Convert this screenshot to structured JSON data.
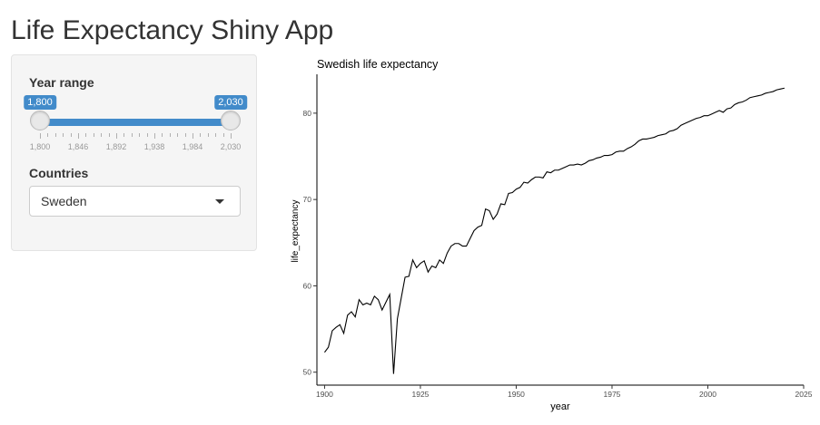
{
  "app": {
    "title": "Life Expectancy Shiny App"
  },
  "sidebar": {
    "year_range": {
      "label": "Year range",
      "min": 1800,
      "max": 2030,
      "low": 1800,
      "high": 2030,
      "low_label": "1,800",
      "high_label": "2,030",
      "major_ticks": [
        "1,800",
        "1,846",
        "1,892",
        "1,938",
        "1,984",
        "2,030"
      ],
      "minor_ticks_per_step": 4,
      "accent_color": "#428bca"
    },
    "countries": {
      "label": "Countries",
      "selected": "Sweden",
      "icon": "caret-down-icon"
    }
  },
  "chart_data": {
    "type": "line",
    "title": "Swedish life expectancy",
    "xlabel": "year",
    "ylabel": "life_expectancy",
    "xlim": [
      1898,
      2025
    ],
    "ylim": [
      48.5,
      84.5
    ],
    "xticks": [
      1900,
      1925,
      1950,
      1975,
      2000,
      2025
    ],
    "yticks": [
      50,
      60,
      70,
      80
    ],
    "grid": false,
    "series": [
      {
        "color": "#000000",
        "x": [
          1900,
          1901,
          1902,
          1903,
          1904,
          1905,
          1906,
          1907,
          1908,
          1909,
          1910,
          1911,
          1912,
          1913,
          1914,
          1915,
          1916,
          1917,
          1918,
          1919,
          1920,
          1921,
          1922,
          1923,
          1924,
          1925,
          1926,
          1927,
          1928,
          1929,
          1930,
          1931,
          1932,
          1933,
          1934,
          1935,
          1936,
          1937,
          1938,
          1939,
          1940,
          1941,
          1942,
          1943,
          1944,
          1945,
          1946,
          1947,
          1948,
          1949,
          1950,
          1951,
          1952,
          1953,
          1954,
          1955,
          1956,
          1957,
          1958,
          1959,
          1960,
          1961,
          1962,
          1963,
          1964,
          1965,
          1966,
          1967,
          1968,
          1969,
          1970,
          1971,
          1972,
          1973,
          1974,
          1975,
          1976,
          1977,
          1978,
          1979,
          1980,
          1981,
          1982,
          1983,
          1984,
          1985,
          1986,
          1987,
          1988,
          1989,
          1990,
          1991,
          1992,
          1993,
          1994,
          1995,
          1996,
          1997,
          1998,
          1999,
          2000,
          2001,
          2002,
          2003,
          2004,
          2005,
          2006,
          2007,
          2008,
          2009,
          2010,
          2011,
          2012,
          2013,
          2014,
          2015,
          2016,
          2017,
          2018,
          2019,
          2020
        ],
        "y": [
          52.3,
          52.9,
          54.8,
          55.2,
          55.5,
          54.5,
          56.6,
          57.0,
          56.4,
          58.4,
          57.8,
          58.0,
          57.8,
          58.8,
          58.4,
          57.2,
          58.1,
          59.0,
          49.8,
          56.2,
          58.6,
          61.0,
          61.1,
          63.0,
          62.1,
          62.6,
          62.9,
          61.6,
          62.3,
          62.1,
          63.0,
          62.6,
          63.8,
          64.6,
          64.9,
          64.9,
          64.6,
          64.6,
          65.5,
          66.4,
          66.8,
          67.0,
          68.9,
          68.7,
          67.7,
          68.3,
          69.5,
          69.4,
          70.7,
          70.8,
          71.2,
          71.4,
          72.0,
          71.9,
          72.3,
          72.6,
          72.6,
          72.5,
          73.2,
          73.1,
          73.4,
          73.4,
          73.6,
          73.8,
          74.0,
          74.0,
          74.1,
          74.0,
          74.2,
          74.5,
          74.6,
          74.8,
          74.9,
          75.1,
          75.1,
          75.2,
          75.5,
          75.6,
          75.6,
          75.9,
          76.1,
          76.4,
          76.8,
          77.0,
          77.0,
          77.1,
          77.2,
          77.4,
          77.5,
          77.6,
          77.9,
          78.0,
          78.2,
          78.6,
          78.8,
          79.0,
          79.2,
          79.4,
          79.5,
          79.7,
          79.7,
          79.9,
          80.1,
          80.3,
          80.1,
          80.5,
          80.6,
          81.0,
          81.2,
          81.3,
          81.5,
          81.8,
          81.9,
          82.0,
          82.1,
          82.3,
          82.4,
          82.5,
          82.7,
          82.8,
          82.9
        ]
      }
    ]
  }
}
